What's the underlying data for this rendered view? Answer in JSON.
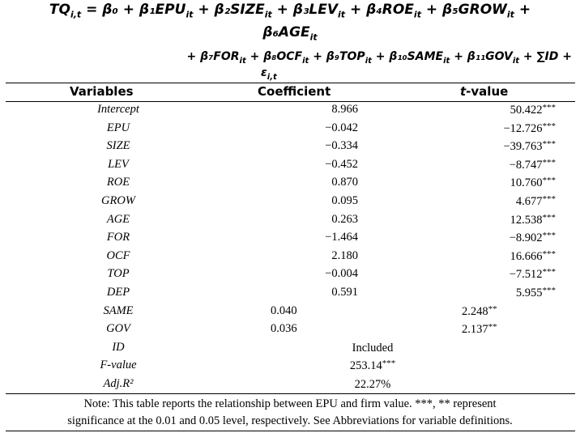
{
  "equation": {
    "line1": "TQ",
    "line1_sub": "i,t",
    "line1_rest": " = β₀ + β₁EPU",
    "line1_parts": [
      "+ β₂SIZE",
      "+ β₃LEV",
      "+ β₄ROE",
      "+ β₅GROW"
    ],
    "line2": "β₆AGE",
    "line3_parts": [
      "+ β₇FOR",
      "+ β₈OCF",
      "+ β₉TOP",
      "+ β₁₀SAME",
      "+ β₁₁GOV",
      "+ ∑ID +"
    ],
    "line4": "ε",
    "sub_it": "it",
    "sub_comma": "i,t"
  },
  "table": {
    "headers": {
      "variables": "Variables",
      "coefficient": "Coefficient",
      "tvalue_t": "t",
      "tvalue_rest": "-value"
    },
    "rows": [
      {
        "variable": "Intercept",
        "coefficient": "8.966",
        "tvalue": "50.422",
        "stars": "***"
      },
      {
        "variable": "EPU",
        "coefficient": "−0.042",
        "tvalue": "−12.726",
        "stars": "***"
      },
      {
        "variable": "SIZE",
        "coefficient": "−0.334",
        "tvalue": "−39.763",
        "stars": "***"
      },
      {
        "variable": "LEV",
        "coefficient": "−0.452",
        "tvalue": "−8.747",
        "stars": "***"
      },
      {
        "variable": "ROE",
        "coefficient": "0.870",
        "tvalue": "10.760",
        "stars": "***"
      },
      {
        "variable": "GROW",
        "coefficient": "0.095",
        "tvalue": "4.677",
        "stars": "***"
      },
      {
        "variable": "AGE",
        "coefficient": "0.263",
        "tvalue": "12.538",
        "stars": "***"
      },
      {
        "variable": "FOR",
        "coefficient": "−1.464",
        "tvalue": "−8.902",
        "stars": "***"
      },
      {
        "variable": "OCF",
        "coefficient": "2.180",
        "tvalue": "16.666",
        "stars": "***"
      },
      {
        "variable": "TOP",
        "coefficient": "−0.004",
        "tvalue": "−7.512",
        "stars": "***"
      },
      {
        "variable": "DEP",
        "coefficient": "0.591",
        "tvalue": "5.955",
        "stars": "***"
      }
    ],
    "left_rows": [
      {
        "variable": "SAME",
        "coefficient": "0.040",
        "tvalue": "2.248",
        "stars": "**"
      },
      {
        "variable": "GOV",
        "coefficient": "0.036",
        "tvalue": "2.137",
        "stars": "**"
      }
    ],
    "summary_rows": [
      {
        "variable": "ID",
        "value": "Included",
        "stars": ""
      },
      {
        "variable": "F-value",
        "value": "253.14",
        "stars": "***"
      },
      {
        "variable": "Adj.R²",
        "value": "22.27%",
        "stars": ""
      }
    ]
  },
  "note": {
    "line1": "Note: This table reports the relationship between EPU and firm value. ***, ** represent",
    "line2": "significance at the 0.01 and 0.05 level, respectively. See Abbreviations for variable definitions."
  }
}
